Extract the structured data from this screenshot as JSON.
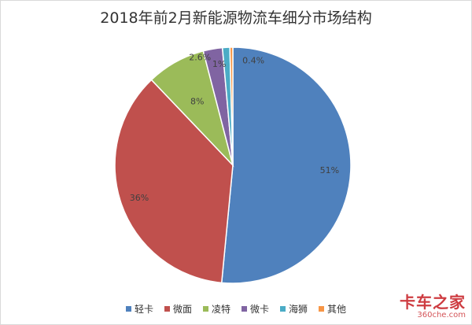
{
  "chart_data": {
    "type": "pie",
    "title": "2018年前2月新能源物流车细分市场结构",
    "slices": [
      {
        "name": "轻卡",
        "value": 51,
        "label": "51%",
        "color": "#4f81bd"
      },
      {
        "name": "微面",
        "value": 36,
        "label": "36%",
        "color": "#c0504d"
      },
      {
        "name": "凌特",
        "value": 8,
        "label": "8%",
        "color": "#9bbb59"
      },
      {
        "name": "微卡",
        "value": 2.6,
        "label": "2.6%",
        "color": "#8064a2"
      },
      {
        "name": "海狮",
        "value": 1,
        "label": "1%",
        "color": "#4bacc6"
      },
      {
        "name": "其他",
        "value": 0.4,
        "label": "0.4%",
        "color": "#f79646"
      }
    ],
    "legend_position": "bottom"
  },
  "watermark": {
    "main": "卡车之家",
    "sub": "360che.com"
  }
}
